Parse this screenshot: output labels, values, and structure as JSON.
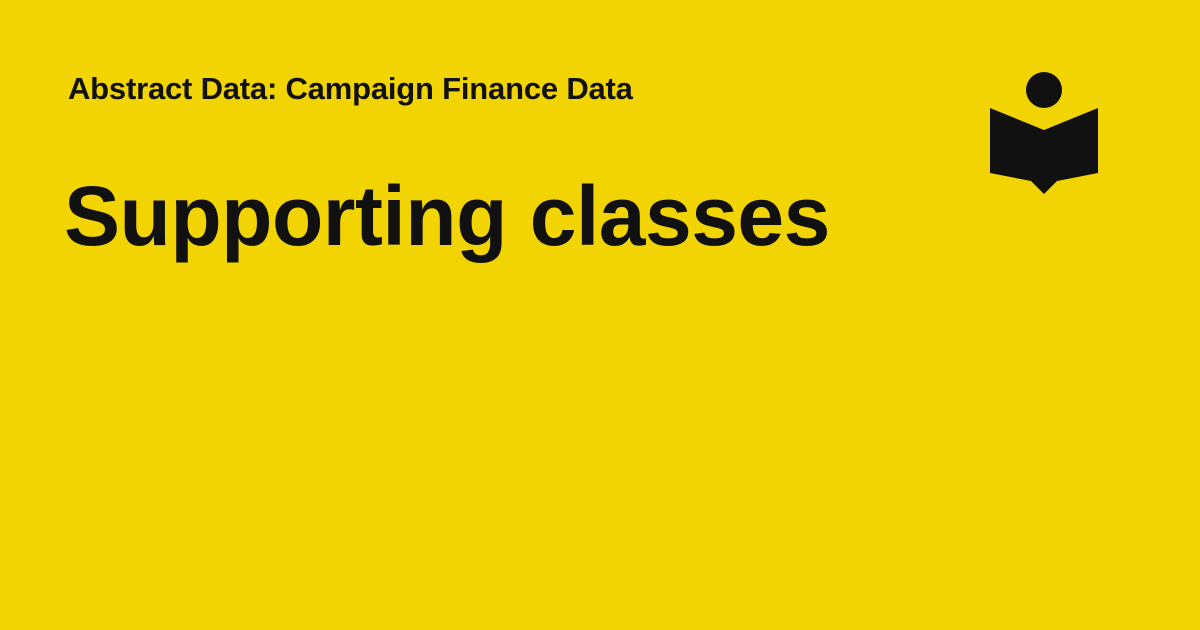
{
  "header": {
    "eyebrow": "Abstract Data: Campaign Finance Data"
  },
  "main": {
    "title": "Supporting classes"
  },
  "logo": {
    "icon": "reader-book-icon"
  },
  "colors": {
    "background": "#f3d403",
    "text": "#111111"
  }
}
